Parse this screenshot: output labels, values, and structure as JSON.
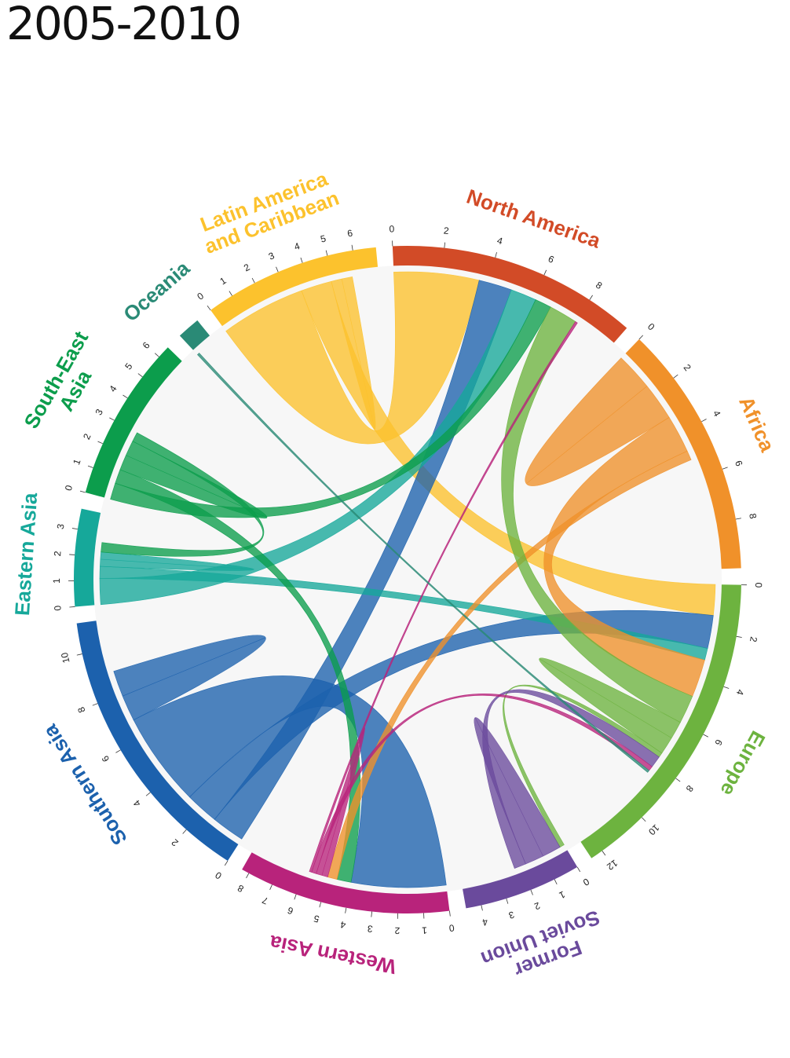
{
  "title": "2005-2010",
  "chart_data": {
    "type": "chord",
    "unit_note": "",
    "regions": [
      {
        "name": "North America",
        "label_lines": [
          "North America"
        ],
        "color": "#d24b27",
        "total": 9.8,
        "ticks": [
          0,
          2,
          4,
          6,
          8
        ]
      },
      {
        "name": "Africa",
        "label_lines": [
          "Africa"
        ],
        "color": "#f0912a",
        "total": 9.9,
        "ticks": [
          0,
          2,
          4,
          6,
          8
        ]
      },
      {
        "name": "Europe",
        "label_lines": [
          "Europe"
        ],
        "color": "#6db33f",
        "total": 12.5,
        "ticks": [
          0,
          2,
          4,
          6,
          8,
          10,
          12
        ]
      },
      {
        "name": "Former Soviet Union",
        "label_lines": [
          "Former",
          "Soviet Union"
        ],
        "color": "#6a4a9c",
        "total": 4.6,
        "ticks": [
          0,
          1,
          2,
          3,
          4
        ]
      },
      {
        "name": "Western Asia",
        "label_lines": [
          "Western Asia"
        ],
        "color": "#b8237b",
        "total": 8.3,
        "ticks": [
          0,
          1,
          2,
          3,
          4,
          5,
          6,
          7,
          8
        ]
      },
      {
        "name": "Southern Asia",
        "label_lines": [
          "Southern Asia"
        ],
        "color": "#1c61ad",
        "total": 11.2,
        "ticks": [
          0,
          2,
          4,
          6,
          8,
          10
        ]
      },
      {
        "name": "Eastern Asia",
        "label_lines": [
          "Eastern Asia"
        ],
        "color": "#16a89a",
        "total": 3.8,
        "ticks": [
          0,
          1,
          2,
          3
        ]
      },
      {
        "name": "South-East Asia",
        "label_lines": [
          "South-East",
          "Asia"
        ],
        "color": "#0c9d4c",
        "total": 6.5,
        "ticks": [
          0,
          1,
          2,
          3,
          4,
          5,
          6
        ]
      },
      {
        "name": "Oceania",
        "label_lines": [
          "Oceania"
        ],
        "color": "#2a8a76",
        "total": 0.9,
        "ticks": []
      },
      {
        "name": "Latin America and Caribbean",
        "label_lines": [
          "Latin America",
          "and Caribbean"
        ],
        "color": "#fcc22d",
        "total": 6.9,
        "ticks": [
          0,
          1,
          2,
          3,
          4,
          5,
          6
        ]
      }
    ],
    "flows": [
      {
        "from": "Latin America and Caribbean",
        "to": "North America",
        "value": 3.6
      },
      {
        "from": "Latin America and Caribbean",
        "to": "Europe",
        "value": 1.3
      },
      {
        "from": "Latin America and Caribbean",
        "to": "Latin America and Caribbean",
        "value": 0.9
      },
      {
        "from": "Southern Asia",
        "to": "North America",
        "value": 1.4
      },
      {
        "from": "Southern Asia",
        "to": "Europe",
        "value": 1.4
      },
      {
        "from": "Southern Asia",
        "to": "Western Asia",
        "value": 4.0
      },
      {
        "from": "Southern Asia",
        "to": "Southern Asia",
        "value": 2.2
      },
      {
        "from": "Eastern Asia",
        "to": "North America",
        "value": 1.1
      },
      {
        "from": "Eastern Asia",
        "to": "Europe",
        "value": 0.5
      },
      {
        "from": "Eastern Asia",
        "to": "Eastern Asia",
        "value": 0.6
      },
      {
        "from": "South-East Asia",
        "to": "North America",
        "value": 0.7
      },
      {
        "from": "South-East Asia",
        "to": "Western Asia",
        "value": 0.6
      },
      {
        "from": "South-East Asia",
        "to": "South-East Asia",
        "value": 1.3
      },
      {
        "from": "South-East Asia",
        "to": "Eastern Asia",
        "value": 0.4
      },
      {
        "from": "Africa",
        "to": "Africa",
        "value": 3.2
      },
      {
        "from": "Africa",
        "to": "Europe",
        "value": 1.6
      },
      {
        "from": "Africa",
        "to": "Western Asia",
        "value": 0.4
      },
      {
        "from": "Europe",
        "to": "North America",
        "value": 1.2
      },
      {
        "from": "Europe",
        "to": "Europe",
        "value": 1.5
      },
      {
        "from": "Europe",
        "to": "Former Soviet Union",
        "value": 0.2
      },
      {
        "from": "Former Soviet Union",
        "to": "Former Soviet Union",
        "value": 1.6
      },
      {
        "from": "Former Soviet Union",
        "to": "Europe",
        "value": 0.5
      },
      {
        "from": "Western Asia",
        "to": "Western Asia",
        "value": 0.5
      },
      {
        "from": "Western Asia",
        "to": "Europe",
        "value": 0.2
      },
      {
        "from": "Western Asia",
        "to": "North America",
        "value": 0.1
      },
      {
        "from": "Oceania",
        "to": "Europe",
        "value": 0.1
      }
    ]
  }
}
